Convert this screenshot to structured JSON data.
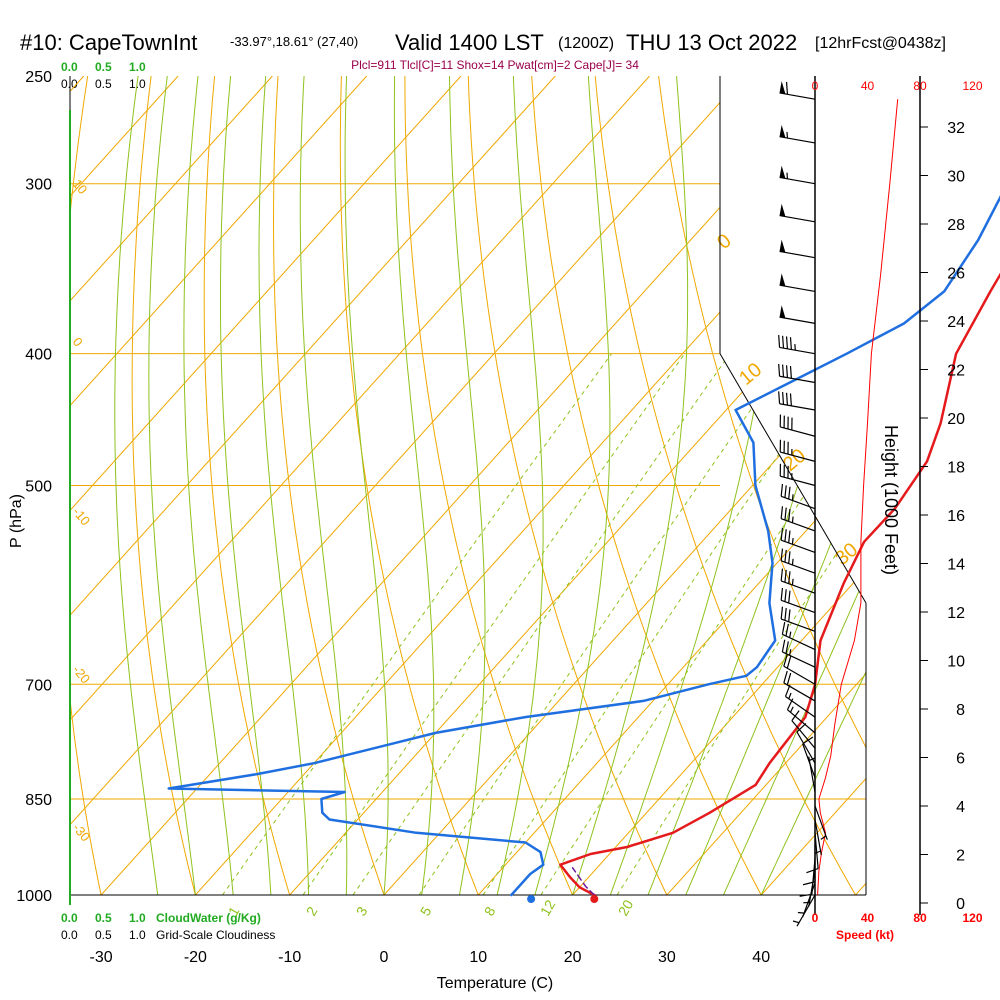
{
  "header": {
    "station": "#10: CapeTownInt",
    "coords": "-33.97°,18.61° (27,40)",
    "valid": "Valid 1400 LST",
    "utc": "(1200Z)",
    "date": "THU 13 Oct 2022",
    "forecast": "[12hrFcst@0438z]",
    "indices": "Plcl=911 Tlcl[C]=11 Shox=14 Pwat[cm]=2 Cape[J]= 34"
  },
  "colors": {
    "temperature": "#e41a1c",
    "dewpoint": "#1f6fe0",
    "isotherm": "#f0a800",
    "isobar": "#f0a800",
    "dry_adiabat": "#f0a800",
    "moist_adiabat": "#8fc21d",
    "mixing_ratio": "#8fc21d",
    "cloudwater": "#22aa22",
    "indices": "#99004c",
    "speed": "#ff0000",
    "parcel": "#6a1b9a"
  },
  "legend": {
    "cloudwater_ticks": [
      "0.0",
      "0.5",
      "1.0"
    ],
    "cloudwater_label": "CloudWater (g/Kg)",
    "cloudiness_ticks": [
      "0.0",
      "0.5",
      "1.0"
    ],
    "cloudiness_label": "Grid-Scale Cloudiness",
    "speed_ticks": [
      "0",
      "40",
      "80",
      "120"
    ],
    "speed_label": "Speed (kt)"
  },
  "chart_data": {
    "type": "line",
    "xlabel": "Temperature (C)",
    "ylabel": "P (hPa)",
    "y2label": "Height (1000 Feet)",
    "x_ticks": [
      -30,
      -20,
      -10,
      0,
      10,
      20,
      30,
      40
    ],
    "p_ticks": [
      250,
      300,
      400,
      500,
      700,
      850,
      1000
    ],
    "height_ticks": [
      0,
      2,
      4,
      6,
      8,
      10,
      12,
      14,
      16,
      18,
      20,
      22,
      24,
      26,
      28,
      30,
      32
    ],
    "mixing_ratio_labels": [
      "1",
      "2",
      "3",
      "5",
      "8",
      "12",
      "20"
    ],
    "dry_adiabat_labels": [
      "10",
      "0",
      "-10",
      "-20",
      "-30"
    ],
    "moist_adiabat_labels": [
      "0",
      "10",
      "20",
      "30"
    ],
    "surface_points": {
      "temperature_c": 22.3,
      "dewpoint_c": 15.6
    },
    "series": [
      {
        "key": "temperature",
        "points": [
          [
            -1,
            266
          ],
          [
            1,
            280
          ],
          [
            3,
            300
          ],
          [
            5,
            330
          ],
          [
            6.7,
            360
          ],
          [
            9,
            400
          ],
          [
            14,
            450
          ],
          [
            16.2,
            480
          ],
          [
            17.3,
            520
          ],
          [
            17.2,
            550
          ],
          [
            19,
            590
          ],
          [
            22,
            650
          ],
          [
            25.6,
            700
          ],
          [
            27.7,
            740
          ],
          [
            28.3,
            800
          ],
          [
            28.9,
            830
          ],
          [
            26.7,
            870
          ],
          [
            24.7,
            900
          ],
          [
            21.2,
            922
          ],
          [
            18,
            933
          ],
          [
            15.8,
            950
          ],
          [
            18,
            970
          ],
          [
            20,
            987
          ],
          [
            22.3,
            1000
          ]
        ]
      },
      {
        "key": "dewpoint",
        "points": [
          [
            -5.5,
            266
          ],
          [
            -2.6,
            290
          ],
          [
            0.5,
            330
          ],
          [
            1.8,
            360
          ],
          [
            0.6,
            380
          ],
          [
            -2.6,
            400
          ],
          [
            -9,
            440
          ],
          [
            -4,
            465
          ],
          [
            0.3,
            500
          ],
          [
            6,
            540
          ],
          [
            9.5,
            570
          ],
          [
            13,
            610
          ],
          [
            17.2,
            650
          ],
          [
            17.8,
            680
          ],
          [
            17.5,
            690
          ],
          [
            14.3,
            700
          ],
          [
            9,
            720
          ],
          [
            -2,
            740
          ],
          [
            -10,
            760
          ],
          [
            -20,
            800
          ],
          [
            -25,
            815
          ],
          [
            -33,
            835
          ],
          [
            -14,
            840
          ],
          [
            -15.8,
            850
          ],
          [
            -14.4,
            870
          ],
          [
            -13,
            880
          ],
          [
            -2.5,
            900
          ],
          [
            10,
            915
          ],
          [
            12.5,
            930
          ],
          [
            14,
            950
          ],
          [
            13.5,
            965
          ],
          [
            13.5,
            1000
          ]
        ]
      },
      {
        "key": "parcel",
        "points": [
          [
            22.3,
            1000
          ],
          [
            20.5,
            985
          ],
          [
            17.4,
            955
          ]
        ]
      }
    ],
    "wind_speed_kt": [
      [
        1000,
        2
      ],
      [
        960,
        3
      ],
      [
        930,
        5
      ],
      [
        900,
        8
      ],
      [
        870,
        4
      ],
      [
        850,
        3
      ],
      [
        820,
        8
      ],
      [
        790,
        12
      ],
      [
        750,
        15
      ],
      [
        700,
        20
      ],
      [
        650,
        30
      ],
      [
        610,
        35
      ],
      [
        550,
        35
      ],
      [
        500,
        37
      ],
      [
        450,
        40
      ],
      [
        400,
        43
      ],
      [
        350,
        50
      ],
      [
        300,
        57
      ],
      [
        260,
        63
      ]
    ],
    "wind_barbs": [
      {
        "p": 260,
        "dir": 280,
        "spd": 60
      },
      {
        "p": 280,
        "dir": 280,
        "spd": 55
      },
      {
        "p": 300,
        "dir": 280,
        "spd": 55
      },
      {
        "p": 320,
        "dir": 280,
        "spd": 50
      },
      {
        "p": 340,
        "dir": 280,
        "spd": 50
      },
      {
        "p": 360,
        "dir": 280,
        "spd": 50
      },
      {
        "p": 380,
        "dir": 280,
        "spd": 50
      },
      {
        "p": 400,
        "dir": 280,
        "spd": 45
      },
      {
        "p": 420,
        "dir": 280,
        "spd": 40
      },
      {
        "p": 440,
        "dir": 280,
        "spd": 40
      },
      {
        "p": 460,
        "dir": 285,
        "spd": 40
      },
      {
        "p": 480,
        "dir": 285,
        "spd": 35
      },
      {
        "p": 500,
        "dir": 285,
        "spd": 35
      },
      {
        "p": 520,
        "dir": 290,
        "spd": 35
      },
      {
        "p": 540,
        "dir": 290,
        "spd": 35
      },
      {
        "p": 560,
        "dir": 290,
        "spd": 35
      },
      {
        "p": 580,
        "dir": 290,
        "spd": 35
      },
      {
        "p": 600,
        "dir": 290,
        "spd": 35
      },
      {
        "p": 620,
        "dir": 290,
        "spd": 30
      },
      {
        "p": 640,
        "dir": 290,
        "spd": 30
      },
      {
        "p": 660,
        "dir": 295,
        "spd": 25
      },
      {
        "p": 680,
        "dir": 295,
        "spd": 25
      },
      {
        "p": 700,
        "dir": 300,
        "spd": 20
      },
      {
        "p": 720,
        "dir": 300,
        "spd": 20
      },
      {
        "p": 740,
        "dir": 305,
        "spd": 15
      },
      {
        "p": 760,
        "dir": 310,
        "spd": 15
      },
      {
        "p": 780,
        "dir": 320,
        "spd": 10
      },
      {
        "p": 800,
        "dir": 330,
        "spd": 10
      },
      {
        "p": 820,
        "dir": 340,
        "spd": 10
      },
      {
        "p": 840,
        "dir": 350,
        "spd": 5
      },
      {
        "p": 860,
        "dir": 160,
        "spd": 5
      },
      {
        "p": 880,
        "dir": 170,
        "spd": 5
      },
      {
        "p": 900,
        "dir": 175,
        "spd": 10
      },
      {
        "p": 920,
        "dir": 180,
        "spd": 10
      },
      {
        "p": 940,
        "dir": 185,
        "spd": 10
      },
      {
        "p": 960,
        "dir": 190,
        "spd": 5
      },
      {
        "p": 980,
        "dir": 200,
        "spd": 5
      },
      {
        "p": 1000,
        "dir": 210,
        "spd": 5
      }
    ]
  }
}
